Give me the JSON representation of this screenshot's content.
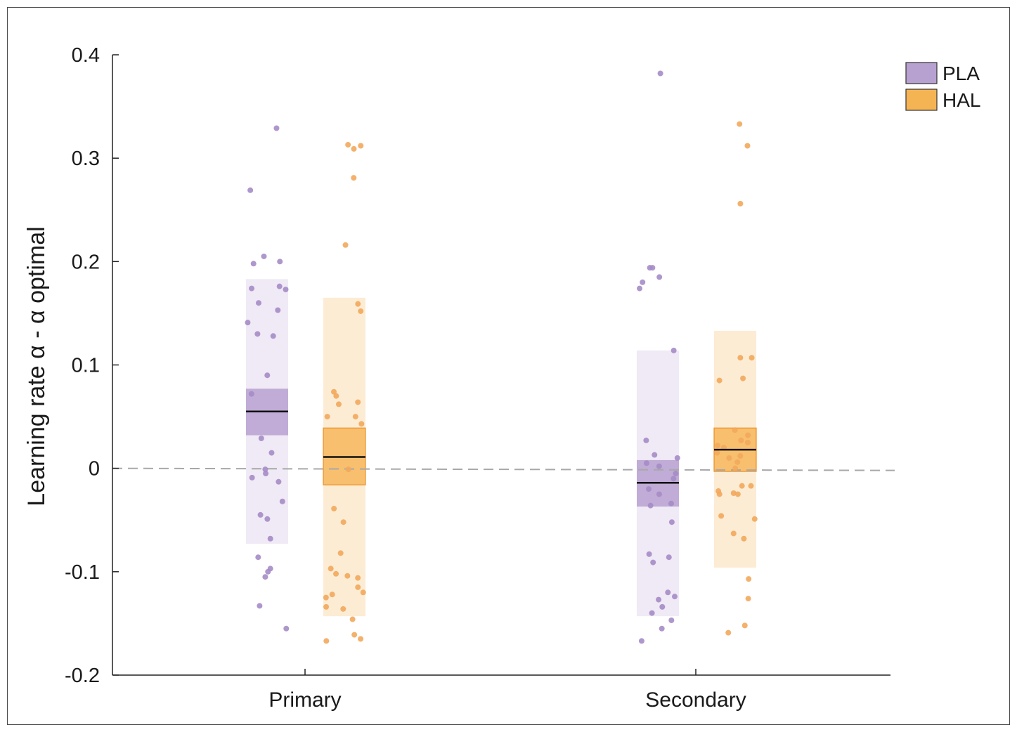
{
  "chart_data": {
    "type": "scatter",
    "ylabel": "Learning rate α - α optimal",
    "ylim": [
      -0.2,
      0.4
    ],
    "yticks": [
      -0.2,
      -0.1,
      0,
      0.1,
      0.2,
      0.3,
      0.4
    ],
    "ytick_labels": [
      "-0.2",
      "-0.1",
      "0",
      "0.1",
      "0.2",
      "0.3",
      "0.4"
    ],
    "categories": [
      "Primary",
      "Secondary"
    ],
    "reference_line": 0,
    "legend": {
      "placement": "top-right"
    },
    "series": [
      {
        "name": "PLA",
        "color": "#b7a1d0",
        "dark_color": "#a58cc6",
        "groups": [
          {
            "category": "Primary",
            "mean": 0.055,
            "sem_low": 0.032,
            "sem_high": 0.077,
            "sd_low": -0.073,
            "sd_high": 0.183,
            "points": [
              0.329,
              0.269,
              0.205,
              0.2,
              0.198,
              0.176,
              0.174,
              0.173,
              0.16,
              0.153,
              0.141,
              0.13,
              0.128,
              0.09,
              0.072,
              0.029,
              0.015,
              -0.001,
              -0.005,
              -0.009,
              -0.013,
              -0.032,
              -0.045,
              -0.049,
              -0.068,
              -0.086,
              -0.097,
              -0.1,
              -0.105,
              -0.133,
              -0.155
            ]
          },
          {
            "category": "Secondary",
            "mean": -0.014,
            "sem_low": -0.037,
            "sem_high": 0.008,
            "sd_low": -0.143,
            "sd_high": 0.114,
            "points": [
              0.382,
              0.194,
              0.194,
              0.185,
              0.18,
              0.174,
              0.114,
              0.027,
              0.013,
              0.01,
              0.005,
              0.002,
              -0.005,
              -0.01,
              -0.02,
              -0.025,
              -0.034,
              -0.036,
              -0.052,
              -0.083,
              -0.086,
              -0.091,
              -0.12,
              -0.124,
              -0.127,
              -0.134,
              -0.14,
              -0.147,
              -0.155,
              -0.167
            ]
          }
        ]
      },
      {
        "name": "HAL",
        "color": "#f5b454",
        "dark_color": "#f2a85c",
        "groups": [
          {
            "category": "Primary",
            "mean": 0.011,
            "sem_low": -0.016,
            "sem_high": 0.039,
            "sd_low": -0.143,
            "sd_high": 0.165,
            "points": [
              0.313,
              0.312,
              0.309,
              0.281,
              0.216,
              0.159,
              0.152,
              0.074,
              0.07,
              0.064,
              0.062,
              0.05,
              0.05,
              0.043,
              -0.001,
              -0.039,
              -0.052,
              -0.082,
              -0.097,
              -0.102,
              -0.104,
              -0.106,
              -0.115,
              -0.12,
              -0.122,
              -0.125,
              -0.134,
              -0.136,
              -0.146,
              -0.161,
              -0.165,
              -0.167
            ]
          },
          {
            "category": "Secondary",
            "mean": 0.018,
            "sem_low": -0.003,
            "sem_high": 0.039,
            "sd_low": -0.096,
            "sd_high": 0.133,
            "points": [
              0.333,
              0.312,
              0.256,
              0.107,
              0.107,
              0.087,
              0.085,
              0.037,
              0.032,
              0.027,
              0.025,
              0.022,
              0.02,
              0.015,
              0.012,
              0.01,
              0.006,
              0.0,
              -0.017,
              -0.017,
              -0.022,
              -0.024,
              -0.025,
              -0.025,
              -0.046,
              -0.049,
              -0.063,
              -0.068,
              -0.107,
              -0.126,
              -0.152,
              -0.159
            ]
          }
        ]
      }
    ]
  }
}
